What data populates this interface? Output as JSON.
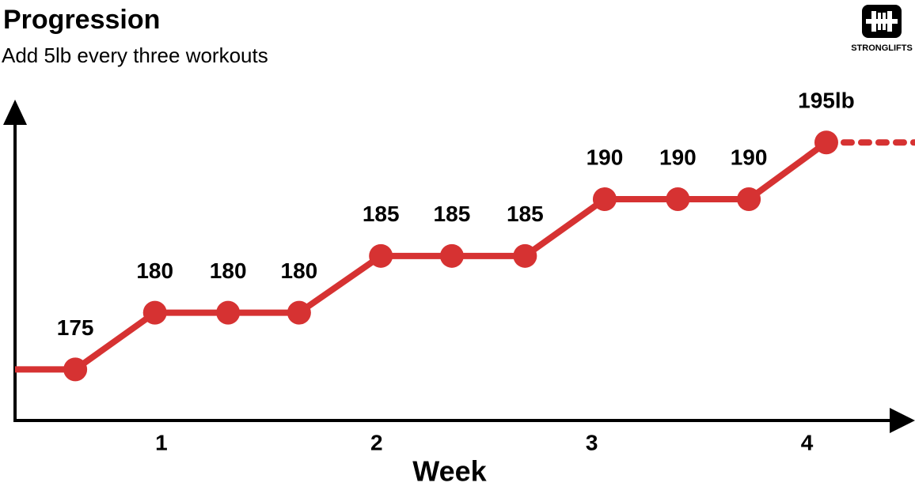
{
  "brand": "STRONGLIFTS",
  "chart_data": {
    "type": "line",
    "title": "Progression",
    "subtitle": "Add 5lb every three workouts",
    "xlabel": "Week",
    "x": [
      0.6,
      0.97,
      1.31,
      1.64,
      2.02,
      2.35,
      2.69,
      3.06,
      3.4,
      3.73,
      4.09
    ],
    "values": [
      175,
      180,
      180,
      180,
      185,
      185,
      185,
      190,
      190,
      190,
      195
    ],
    "value_labels": [
      "175",
      "180",
      "180",
      "180",
      "185",
      "185",
      "185",
      "190",
      "190",
      "190",
      "195lb"
    ],
    "color": "#d63232",
    "xlim": [
      0.32,
      4.48
    ],
    "xticks": [
      1,
      2,
      3,
      4
    ],
    "ylim": [
      170.5,
      198.5
    ]
  }
}
